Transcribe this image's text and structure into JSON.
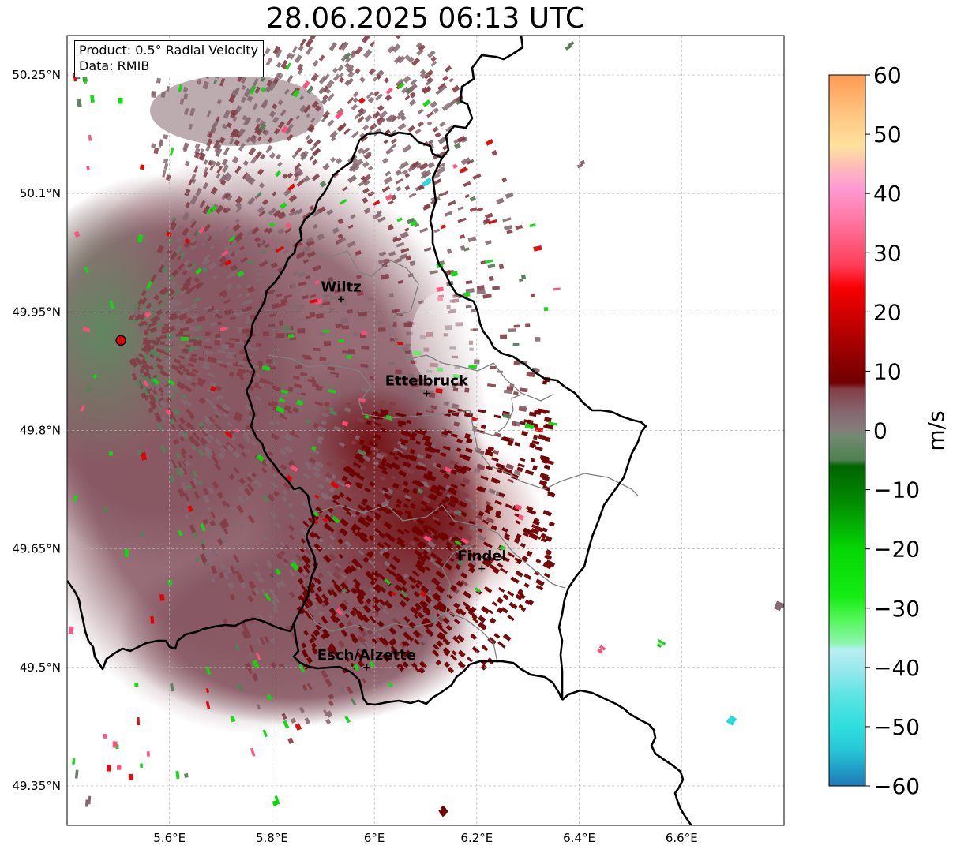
{
  "title": "28.06.2025 06:13 UTC",
  "info": {
    "product": "Product: 0.5° Radial Velocity",
    "data": "Data: RMIB"
  },
  "map": {
    "lon_range": [
      5.4,
      6.8
    ],
    "lat_range": [
      49.3,
      50.3
    ],
    "x_ticks": [
      "5.6°E",
      "5.8°E",
      "6°E",
      "6.2°E",
      "6.4°E",
      "6.6°E"
    ],
    "y_ticks": [
      "50.25°N",
      "50.1°N",
      "49.95°N",
      "49.8°N",
      "49.65°N",
      "49.5°N",
      "49.35°N"
    ],
    "grid": true,
    "radar_site": {
      "lon": 5.505,
      "lat": 49.914
    },
    "cities": [
      {
        "name": "Wiltz",
        "lon": 5.935,
        "lat": 49.966
      },
      {
        "name": "Ettelbruck",
        "lon": 6.102,
        "lat": 49.847
      },
      {
        "name": "Findel",
        "lon": 6.21,
        "lat": 49.625
      },
      {
        "name": "Esch/Alzette",
        "lon": 5.985,
        "lat": 49.5
      }
    ]
  },
  "colorbar": {
    "label": "m/s",
    "min": -60,
    "max": 60,
    "ticks": [
      "60",
      "50",
      "40",
      "30",
      "20",
      "10",
      "0",
      "−10",
      "−20",
      "−30",
      "−40",
      "−50",
      "−60"
    ],
    "stops": [
      {
        "v": -60,
        "c": "#1f77b4"
      },
      {
        "v": -57,
        "c": "#20a0c8"
      },
      {
        "v": -54,
        "c": "#26c6d8"
      },
      {
        "v": -50,
        "c": "#30dede"
      },
      {
        "v": -45,
        "c": "#5ae3e3"
      },
      {
        "v": -40,
        "c": "#9be9ec"
      },
      {
        "v": -37,
        "c": "#b9eef1"
      },
      {
        "v": -36,
        "c": "#8ef5b0"
      },
      {
        "v": -32,
        "c": "#55f75a"
      },
      {
        "v": -28,
        "c": "#14ec14"
      },
      {
        "v": -20,
        "c": "#05d605"
      },
      {
        "v": -12,
        "c": "#028a02"
      },
      {
        "v": -6,
        "c": "#006400"
      },
      {
        "v": -5,
        "c": "#4f8050"
      },
      {
        "v": -1,
        "c": "#718a72"
      },
      {
        "v": 0,
        "c": "#847e7a"
      },
      {
        "v": 3,
        "c": "#856870"
      },
      {
        "v": 7,
        "c": "#843d46"
      },
      {
        "v": 8,
        "c": "#6f0000"
      },
      {
        "v": 16,
        "c": "#b10000"
      },
      {
        "v": 24,
        "c": "#f70000"
      },
      {
        "v": 28,
        "c": "#ff3e5a"
      },
      {
        "v": 36,
        "c": "#ff7aa8"
      },
      {
        "v": 41,
        "c": "#ff9bd2"
      },
      {
        "v": 44,
        "c": "#ffb6bb"
      },
      {
        "v": 48,
        "c": "#ffe29e"
      },
      {
        "v": 54,
        "c": "#ffc17e"
      },
      {
        "v": 60,
        "c": "#ff9a52"
      }
    ]
  },
  "colors": {
    "outbound_dark": "#6f0000",
    "mauve": "#843d46",
    "gray_rose": "#856870",
    "gray_green": "#5a7d5c",
    "green": "#0fd80f",
    "pink": "#ff4d7a",
    "red": "#e00000",
    "cyan": "#2ad9dc"
  }
}
